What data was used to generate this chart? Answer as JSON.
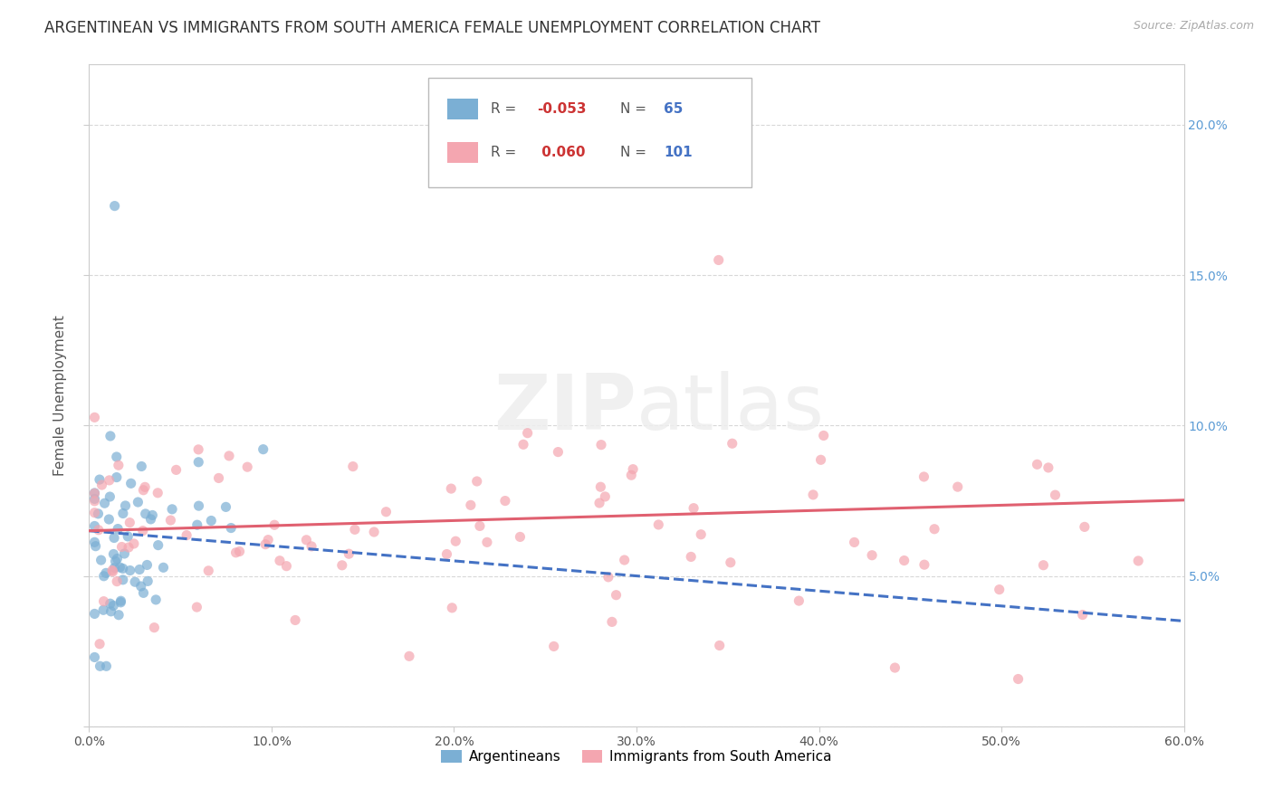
{
  "title": "ARGENTINEAN VS IMMIGRANTS FROM SOUTH AMERICA FEMALE UNEMPLOYMENT CORRELATION CHART",
  "source": "Source: ZipAtlas.com",
  "ylabel": "Female Unemployment",
  "watermark": "ZIPatlas",
  "legend1_label": "Argentineans",
  "legend2_label": "Immigrants from South America",
  "r1": -0.053,
  "n1": 65,
  "r2": 0.06,
  "n2": 101,
  "color1": "#7bafd4",
  "color2": "#f4a6b0",
  "trendline1_color": "#4472c4",
  "trendline2_color": "#e06070",
  "xlim": [
    0.0,
    0.6
  ],
  "ylim": [
    0.0,
    0.22
  ],
  "background_color": "#ffffff",
  "grid_color": "#d8d8d8",
  "title_fontsize": 12,
  "axis_label_fontsize": 11,
  "tick_fontsize": 10,
  "right_tick_color": "#5b9bd5",
  "legend_r1_color": "#cc3333",
  "legend_n1_color": "#4472c4",
  "legend_r2_color": "#cc3333",
  "legend_n2_color": "#4472c4"
}
